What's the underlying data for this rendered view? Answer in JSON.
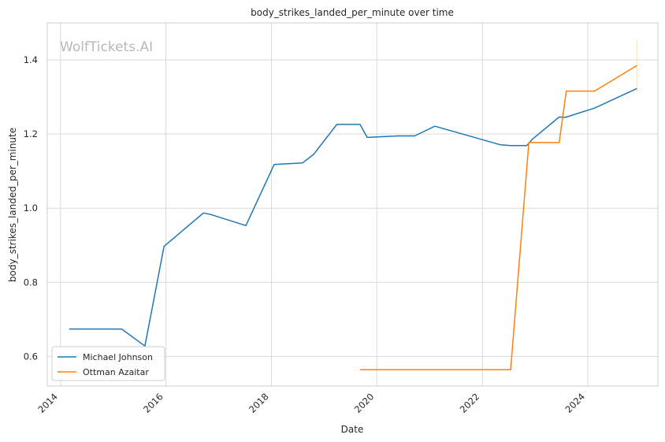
{
  "chart_data": {
    "type": "line",
    "title": "body_strikes_landed_per_minute over time",
    "xlabel": "Date",
    "ylabel": "body_strikes_landed_per_minute",
    "watermark": "WolfTickets.AI",
    "x_ticks": [
      "2014",
      "2016",
      "2018",
      "2020",
      "2022",
      "2024"
    ],
    "y_ticks": [
      "0.6",
      "0.8",
      "1.0",
      "1.2",
      "1.4"
    ],
    "xlim": [
      "2013-10-01",
      "2025-05-01"
    ],
    "ylim": [
      0.52,
      1.5
    ],
    "grid": true,
    "legend_position": "lower-left",
    "series": [
      {
        "name": "Michael Johnson",
        "color": "#1f77b4",
        "points": [
          [
            "2014-03-01",
            0.674
          ],
          [
            "2015-02-28",
            0.674
          ],
          [
            "2015-08-08",
            0.628
          ],
          [
            "2015-12-19",
            0.897
          ],
          [
            "2016-09-17",
            0.987
          ],
          [
            "2016-11-05",
            0.983
          ],
          [
            "2017-07-08",
            0.953
          ],
          [
            "2018-01-20",
            1.118
          ],
          [
            "2018-08-04",
            1.122
          ],
          [
            "2018-10-20",
            1.145
          ],
          [
            "2019-03-30",
            1.226
          ],
          [
            "2019-09-07",
            1.226
          ],
          [
            "2019-10-26",
            1.191
          ],
          [
            "2020-05-30",
            1.195
          ],
          [
            "2020-09-19",
            1.195
          ],
          [
            "2021-02-06",
            1.221
          ],
          [
            "2022-05-07",
            1.171
          ],
          [
            "2022-07-16",
            1.169
          ],
          [
            "2022-11-05",
            1.169
          ],
          [
            "2022-12-10",
            1.185
          ],
          [
            "2023-06-17",
            1.246
          ],
          [
            "2023-07-29",
            1.245
          ],
          [
            "2024-02-17",
            1.27
          ],
          [
            "2024-12-07",
            1.323
          ]
        ]
      },
      {
        "name": "Ottman Azaitar",
        "color": "#ff7f0e",
        "points": [
          [
            "2019-09-07",
            0.564
          ],
          [
            "2022-07-16",
            0.564
          ],
          [
            "2022-11-19",
            1.177
          ],
          [
            "2023-06-17",
            1.177
          ],
          [
            "2023-08-05",
            1.316
          ],
          [
            "2024-02-17",
            1.316
          ],
          [
            "2024-12-07",
            1.385
          ]
        ]
      }
    ],
    "band": {
      "series": "Ottman Azaitar",
      "color": "#ff7f0e",
      "date": "2024-12-07",
      "low": 1.315,
      "high": 1.455
    }
  }
}
